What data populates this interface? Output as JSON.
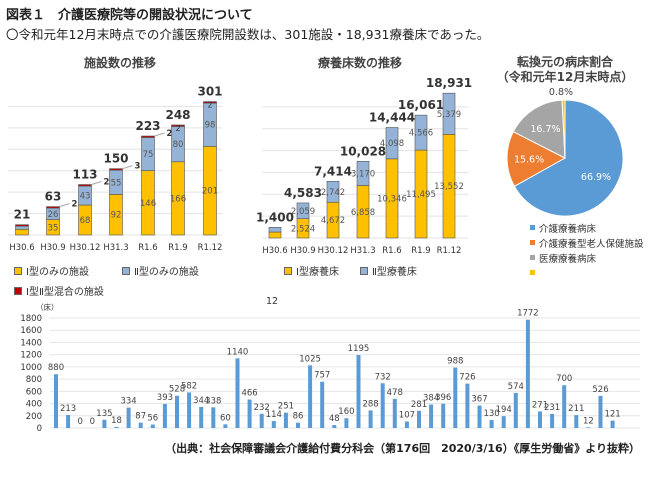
{
  "header": {
    "title": "図表１　介護医療院等の開設状況について",
    "subtitle": "〇令和元年12月末時点での介護医療院開設数は、301施設・18,931療養床であった。"
  },
  "colors": {
    "type1": "#ffc000",
    "type2": "#95b3d7",
    "mixed": "#c00000",
    "blue": "#5b9bd5",
    "orange": "#ed7d31",
    "gray": "#a5a5a5",
    "yellow": "#ffc000"
  },
  "chart_data": [
    {
      "type": "bar",
      "stacked": true,
      "title": "施設数の推移",
      "categories": [
        "H30.6",
        "H30.9",
        "H30.12",
        "H31.3",
        "R1.6",
        "R1.9",
        "R1.12"
      ],
      "series": [
        {
          "name": "Ⅰ型のみの施設",
          "values": [
            13,
            35,
            68,
            92,
            146,
            166,
            201
          ]
        },
        {
          "name": "Ⅱ型のみの施設",
          "values": [
            7,
            26,
            43,
            55,
            75,
            80,
            98
          ]
        },
        {
          "name": "Ⅰ型Ⅱ型混合の施設",
          "values": [
            1,
            2,
            2,
            3,
            2,
            2,
            2
          ]
        }
      ],
      "totals": [
        "21",
        "63",
        "113",
        "150",
        "223",
        "248",
        "301"
      ],
      "ylim": [
        0,
        340
      ],
      "grid": true,
      "legend": "bottom"
    },
    {
      "type": "bar",
      "stacked": true,
      "title": "療養床数の推移",
      "categories": [
        "H30.6",
        "H30.9",
        "H30.12",
        "H31.3",
        "R1.6",
        "R1.9",
        "R1.12"
      ],
      "series": [
        {
          "name": "Ⅰ型療養床",
          "values": [
            781,
            2524,
            4672,
            6858,
            10346,
            11495,
            13552
          ]
        },
        {
          "name": "Ⅱ型療養床",
          "values": [
            619,
            2059,
            2742,
            3170,
            4098,
            4566,
            5379
          ]
        }
      ],
      "totals": [
        "1,400",
        "4,583",
        "7,414",
        "10,028",
        "14,444",
        "16,061",
        "18,931"
      ],
      "ylim": [
        0,
        20000
      ],
      "grid": true,
      "legend": "bottom"
    },
    {
      "type": "pie",
      "title": "転換元の病床割合",
      "subtitle": "（令和元年12月末時点）",
      "slices": [
        {
          "name": "介護療養病床",
          "value": 66.9,
          "label": "66.9%"
        },
        {
          "name": "介護療養型老人保健施設",
          "value": 15.6,
          "label": "15.6%"
        },
        {
          "name": "医療療養病床",
          "value": 16.7,
          "label": "16.7%"
        },
        {
          "name": "",
          "value": 0.8,
          "label": "0.8%"
        }
      ],
      "legend": "bottom"
    },
    {
      "type": "bar",
      "title": "12",
      "ylabel": "（床）",
      "ylim": [
        0,
        1800
      ],
      "yticks": [
        0,
        200,
        400,
        600,
        800,
        1000,
        1200,
        1400,
        1600,
        1800
      ],
      "values": [
        880,
        213,
        0,
        0,
        135,
        18,
        334,
        87,
        56,
        393,
        528,
        582,
        344,
        338,
        60,
        1140,
        466,
        232,
        114,
        251,
        86,
        1025,
        757,
        48,
        160,
        1195,
        288,
        732,
        478,
        107,
        281,
        384,
        396,
        988,
        726,
        367,
        130,
        194,
        574,
        1772,
        271,
        231,
        700,
        211,
        12,
        526,
        121
      ],
      "grid": true
    }
  ],
  "source": "（出典：社会保障審議会介護給付費分科会（第176回　2020/3/16）《厚生労働省》より抜粋）"
}
